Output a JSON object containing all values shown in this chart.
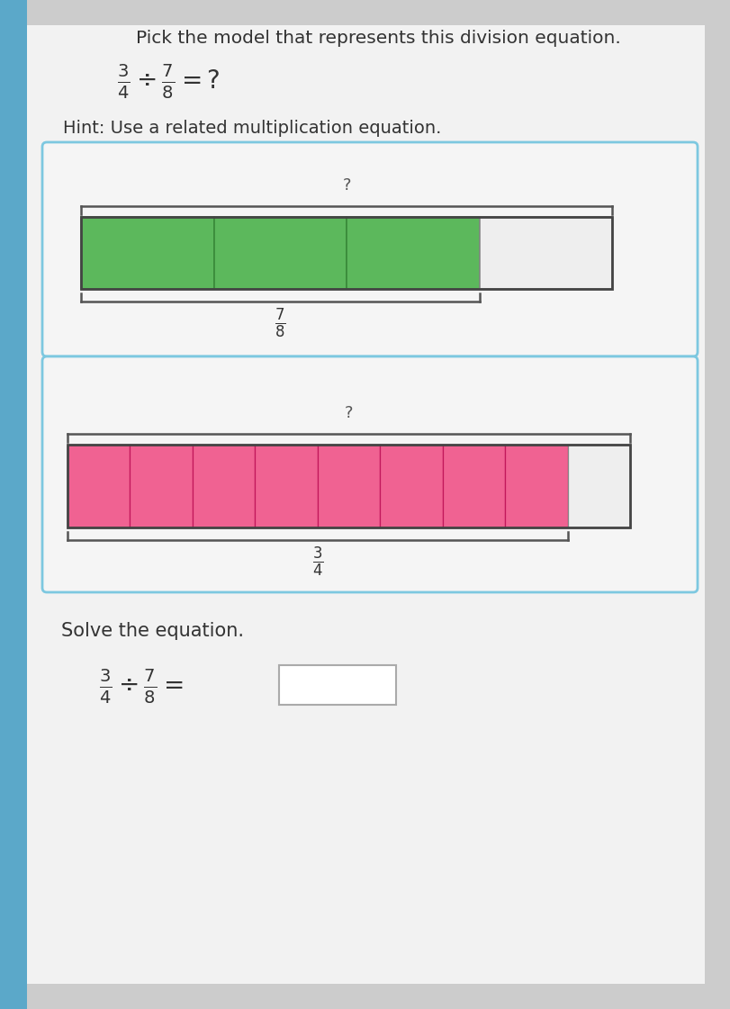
{
  "title": "Pick the model that represents this division equation.",
  "hint": "Hint: Use a related multiplication equation.",
  "page_bg": "#f2f2f2",
  "left_bar_color": "#5ba8c9",
  "box_border_color": "#7dc8e0",
  "green_fill": "#5cb85c",
  "green_border": "#3a8a3a",
  "pink_fill": "#f06292",
  "pink_border": "#c2185b",
  "white_seg_fill": "#eeeeee",
  "bracket_color": "#555555",
  "bar1_total_segments": 4,
  "bar1_filled_segments": 3,
  "bar1_label_num": "7",
  "bar1_label_den": "8",
  "bar2_total_segments": 9,
  "bar2_filled_segments": 8,
  "bar2_label_num": "3",
  "bar2_label_den": "4",
  "solve_label": "Solve the equation.",
  "text_color": "#333333",
  "bracket_tick_color": "#666666"
}
